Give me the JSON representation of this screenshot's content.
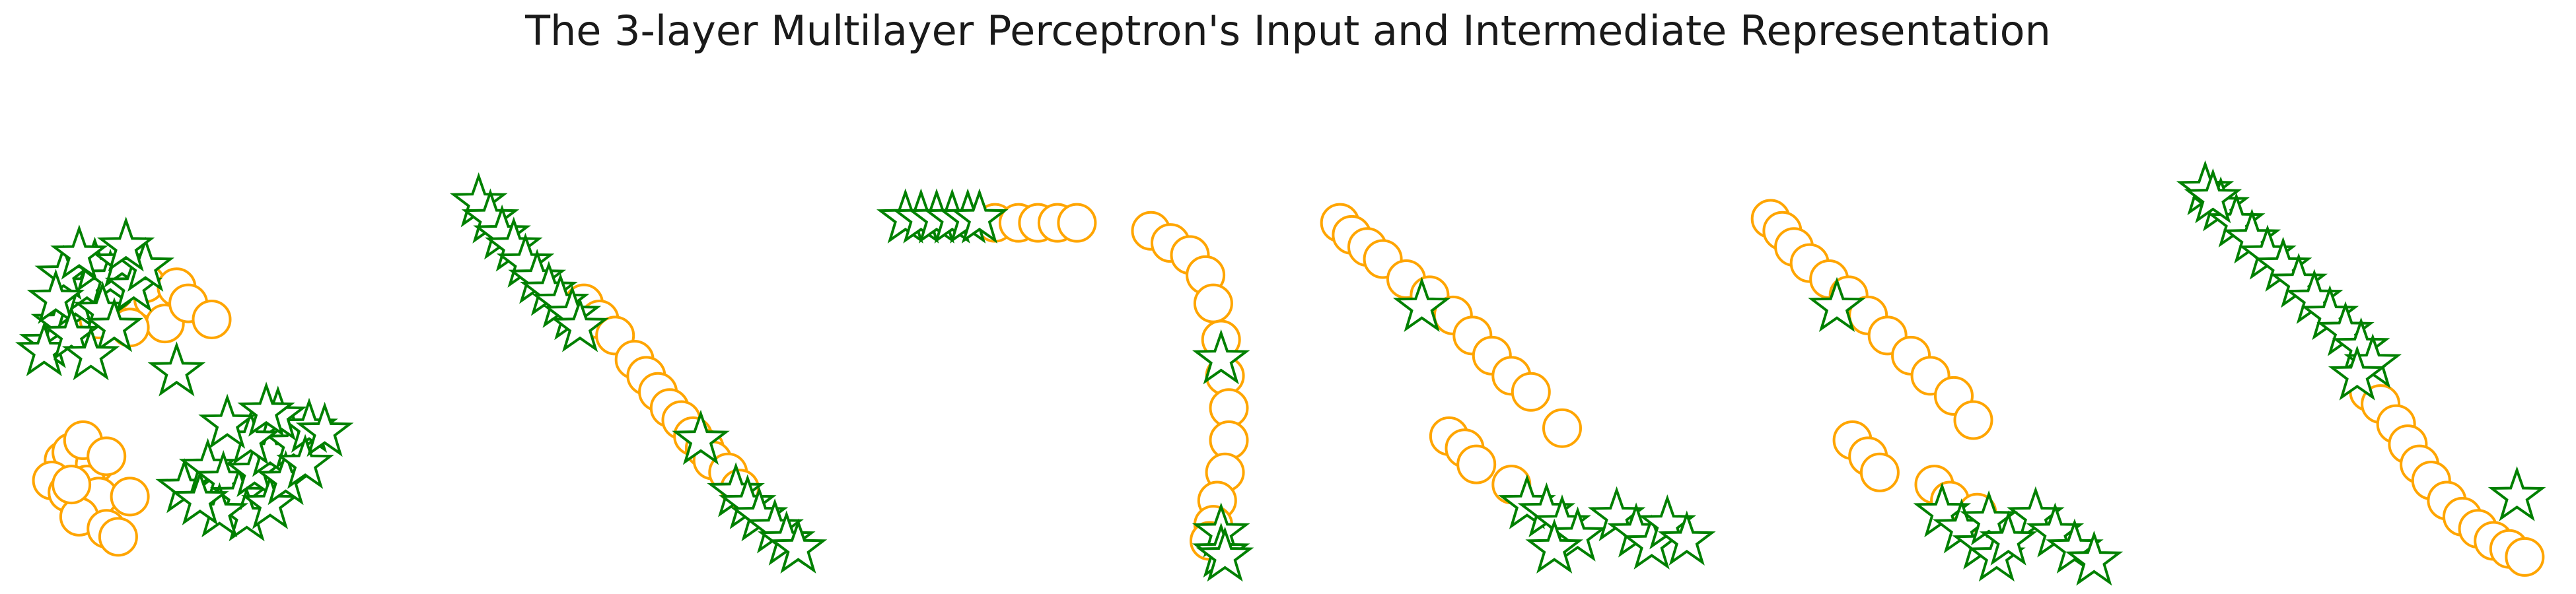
{
  "colors": {
    "orange": "#FFA500",
    "green": "#008000",
    "fill": "#ffffff"
  },
  "chart_data": {
    "type": "scatter",
    "title": "The 3-layer Multilayer Perceptron's Input and Intermediate Representation",
    "grid": false,
    "legend": "none",
    "axes_visible": false,
    "marker_encoding": {
      "orange": "circle",
      "green": "star"
    },
    "panels": [
      {
        "xlim": [
          0,
          10
        ],
        "ylim": [
          0,
          10
        ],
        "orange_points": [
          [
            1.6,
            6.0
          ],
          [
            1.9,
            6.3
          ],
          [
            2.2,
            6.6
          ],
          [
            2.6,
            6.1
          ],
          [
            3.0,
            6.5
          ],
          [
            3.3,
            5.9
          ],
          [
            2.0,
            6.7
          ],
          [
            2.8,
            6.9
          ],
          [
            3.6,
            6.8
          ],
          [
            3.9,
            6.4
          ],
          [
            2.4,
            5.8
          ],
          [
            4.5,
            6.0
          ],
          [
            0.7,
            2.5
          ],
          [
            1.1,
            2.2
          ],
          [
            0.9,
            2.7
          ],
          [
            1.5,
            2.4
          ],
          [
            1.3,
            1.9
          ],
          [
            0.4,
            2.0
          ],
          [
            0.8,
            1.7
          ],
          [
            1.2,
            3.0
          ],
          [
            1.8,
            2.6
          ],
          [
            1.6,
            1.6
          ],
          [
            2.4,
            1.6
          ],
          [
            1.1,
            1.1
          ],
          [
            1.8,
            0.8
          ],
          [
            2.1,
            0.6
          ],
          [
            0.9,
            1.9
          ]
        ],
        "green_points": [
          [
            0.3,
            5.4
          ],
          [
            0.6,
            5.9
          ],
          [
            1.0,
            6.4
          ],
          [
            1.3,
            6.8
          ],
          [
            0.7,
            7.1
          ],
          [
            1.5,
            7.3
          ],
          [
            1.9,
            7.0
          ],
          [
            1.1,
            7.6
          ],
          [
            0.5,
            6.5
          ],
          [
            1.7,
            6.2
          ],
          [
            0.2,
            5.2
          ],
          [
            2.2,
            7.4
          ],
          [
            2.5,
            6.8
          ],
          [
            2.0,
            5.8
          ],
          [
            0.9,
            5.6
          ],
          [
            2.8,
            7.3
          ],
          [
            1.4,
            5.1
          ],
          [
            2.3,
            7.8
          ],
          [
            3.6,
            4.7
          ],
          [
            3.8,
            1.8
          ],
          [
            4.4,
            2.3
          ],
          [
            4.8,
            2.0
          ],
          [
            5.2,
            1.6
          ],
          [
            5.6,
            2.2
          ],
          [
            6.0,
            2.7
          ],
          [
            6.6,
            2.9
          ],
          [
            7.0,
            3.3
          ],
          [
            6.2,
            3.6
          ],
          [
            5.5,
            3.0
          ],
          [
            4.9,
            3.4
          ],
          [
            5.4,
            1.1
          ],
          [
            6.0,
            1.4
          ],
          [
            6.4,
            2.0
          ],
          [
            4.7,
            1.2
          ],
          [
            4.2,
            1.5
          ],
          [
            6.9,
            2.4
          ],
          [
            7.4,
            3.2
          ],
          [
            5.9,
            3.7
          ]
        ]
      },
      {
        "xlim": [
          0,
          10
        ],
        "ylim": [
          0,
          10
        ],
        "orange_points": [
          [
            3.0,
            6.4
          ],
          [
            3.4,
            6.0
          ],
          [
            3.8,
            5.6
          ],
          [
            4.3,
            5.0
          ],
          [
            4.6,
            4.6
          ],
          [
            4.9,
            4.2
          ],
          [
            5.2,
            3.8
          ],
          [
            5.5,
            3.5
          ],
          [
            5.8,
            3.1
          ],
          [
            6.1,
            2.8
          ],
          [
            6.3,
            2.5
          ],
          [
            6.7,
            2.2
          ],
          [
            7.0,
            1.8
          ]
        ],
        "green_points": [
          [
            0.3,
            8.9
          ],
          [
            0.6,
            8.5
          ],
          [
            0.9,
            8.1
          ],
          [
            1.2,
            7.8
          ],
          [
            1.5,
            7.4
          ],
          [
            1.8,
            7.0
          ],
          [
            2.1,
            6.7
          ],
          [
            2.4,
            6.4
          ],
          [
            2.7,
            6.1
          ],
          [
            2.9,
            5.8
          ],
          [
            6.0,
            3.0
          ],
          [
            6.9,
            1.7
          ],
          [
            7.2,
            1.4
          ],
          [
            7.5,
            1.1
          ],
          [
            7.9,
            0.8
          ],
          [
            8.2,
            0.5
          ],
          [
            8.5,
            0.3
          ]
        ]
      },
      {
        "xlim": [
          0,
          10
        ],
        "ylim": [
          0,
          10
        ],
        "orange_points": [
          [
            2.5,
            8.4
          ],
          [
            3.1,
            8.4
          ],
          [
            3.6,
            8.4
          ],
          [
            4.1,
            8.4
          ],
          [
            4.6,
            8.4
          ],
          [
            6.5,
            8.2
          ],
          [
            7.0,
            7.9
          ],
          [
            7.5,
            7.6
          ],
          [
            7.9,
            7.1
          ],
          [
            8.1,
            6.4
          ],
          [
            8.3,
            5.5
          ],
          [
            8.4,
            4.6
          ],
          [
            8.5,
            3.8
          ],
          [
            8.5,
            3.0
          ],
          [
            8.4,
            2.2
          ],
          [
            8.2,
            1.5
          ],
          [
            8.1,
            0.9
          ],
          [
            8.0,
            0.5
          ]
        ],
        "green_points": [
          [
            0.2,
            8.5
          ],
          [
            0.6,
            8.5
          ],
          [
            1.0,
            8.5
          ],
          [
            1.4,
            8.5
          ],
          [
            1.8,
            8.5
          ],
          [
            2.1,
            8.5
          ],
          [
            8.3,
            5.0
          ],
          [
            8.3,
            0.7
          ],
          [
            8.3,
            0.2
          ],
          [
            8.4,
            0.1
          ]
        ]
      },
      {
        "xlim": [
          0,
          10
        ],
        "ylim": [
          0,
          10
        ],
        "orange_points": [
          [
            0.3,
            8.4
          ],
          [
            0.6,
            8.1
          ],
          [
            1.0,
            7.8
          ],
          [
            1.4,
            7.5
          ],
          [
            2.0,
            7.0
          ],
          [
            2.6,
            6.6
          ],
          [
            3.2,
            6.1
          ],
          [
            3.7,
            5.6
          ],
          [
            4.2,
            5.1
          ],
          [
            4.7,
            4.6
          ],
          [
            5.2,
            4.2
          ],
          [
            3.1,
            3.1
          ],
          [
            3.5,
            2.8
          ],
          [
            3.8,
            2.4
          ],
          [
            6.0,
            3.3
          ],
          [
            4.7,
            1.9
          ]
        ],
        "green_points": [
          [
            2.4,
            6.3
          ],
          [
            5.1,
            1.4
          ],
          [
            5.6,
            1.2
          ],
          [
            6.0,
            0.9
          ],
          [
            6.4,
            0.6
          ],
          [
            5.8,
            0.3
          ],
          [
            7.4,
            1.1
          ],
          [
            7.9,
            0.7
          ],
          [
            8.3,
            0.4
          ],
          [
            8.7,
            0.9
          ],
          [
            9.2,
            0.5
          ]
        ]
      },
      {
        "xlim": [
          0,
          10
        ],
        "ylim": [
          0,
          10
        ],
        "orange_points": [
          [
            0.3,
            8.5
          ],
          [
            0.6,
            8.2
          ],
          [
            0.9,
            7.8
          ],
          [
            1.3,
            7.4
          ],
          [
            1.8,
            7.0
          ],
          [
            2.3,
            6.6
          ],
          [
            2.8,
            6.1
          ],
          [
            3.3,
            5.6
          ],
          [
            3.9,
            5.1
          ],
          [
            4.4,
            4.6
          ],
          [
            5.0,
            4.1
          ],
          [
            5.5,
            3.5
          ],
          [
            2.4,
            3.0
          ],
          [
            2.8,
            2.6
          ],
          [
            3.1,
            2.2
          ],
          [
            4.5,
            1.9
          ],
          [
            4.9,
            1.5
          ],
          [
            5.6,
            1.2
          ]
        ],
        "green_points": [
          [
            2.0,
            6.3
          ],
          [
            4.7,
            1.2
          ],
          [
            5.2,
            0.8
          ],
          [
            5.7,
            0.4
          ],
          [
            6.1,
            0.1
          ],
          [
            7.1,
            1.1
          ],
          [
            7.6,
            0.7
          ],
          [
            8.1,
            0.3
          ],
          [
            8.6,
            0.0
          ],
          [
            5.9,
            1.0
          ],
          [
            6.4,
            0.5
          ]
        ]
      },
      {
        "xlim": [
          0,
          10
        ],
        "ylim": [
          0,
          10
        ],
        "orange_points": [
          [
            4.6,
            4.2
          ],
          [
            4.9,
            3.9
          ],
          [
            5.3,
            3.4
          ],
          [
            5.6,
            2.9
          ],
          [
            5.9,
            2.4
          ],
          [
            6.2,
            2.0
          ],
          [
            6.6,
            1.5
          ],
          [
            7.0,
            1.1
          ],
          [
            7.4,
            0.8
          ],
          [
            7.8,
            0.5
          ],
          [
            8.2,
            0.3
          ],
          [
            8.6,
            0.1
          ]
        ],
        "green_points": [
          [
            0.4,
            9.2
          ],
          [
            0.8,
            8.8
          ],
          [
            1.2,
            8.4
          ],
          [
            1.6,
            8.0
          ],
          [
            2.0,
            7.6
          ],
          [
            2.4,
            7.3
          ],
          [
            2.8,
            6.9
          ],
          [
            3.2,
            6.5
          ],
          [
            3.6,
            6.1
          ],
          [
            4.0,
            5.7
          ],
          [
            4.4,
            5.3
          ],
          [
            4.7,
            4.9
          ],
          [
            4.3,
            4.6
          ],
          [
            8.4,
            1.6
          ],
          [
            0.6,
            9.0
          ]
        ]
      }
    ]
  }
}
